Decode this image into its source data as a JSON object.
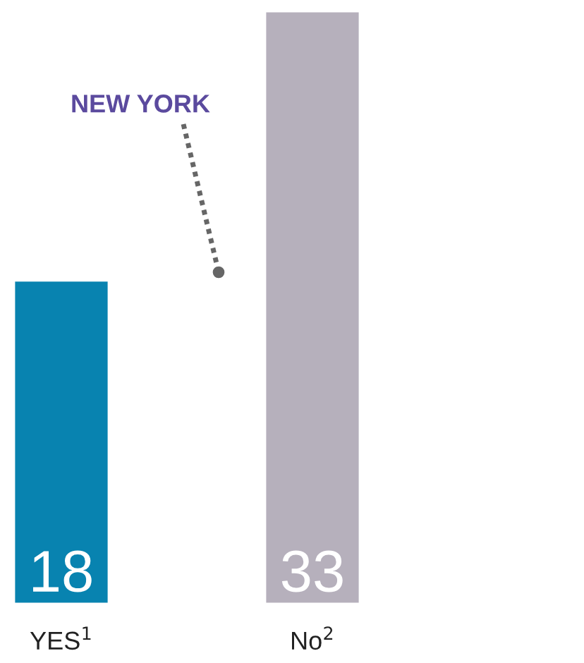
{
  "chart_data": {
    "type": "bar",
    "categories": [
      "YES$^{1}$",
      "No$^{2}$"
    ],
    "values": [
      18,
      33
    ],
    "colors": [
      "#0883b0",
      "#b6b0bc"
    ],
    "ylim": [
      0,
      33
    ],
    "data_labels": true,
    "grid": false,
    "legend": false,
    "annotations": [
      "NEW YORK"
    ]
  }
}
